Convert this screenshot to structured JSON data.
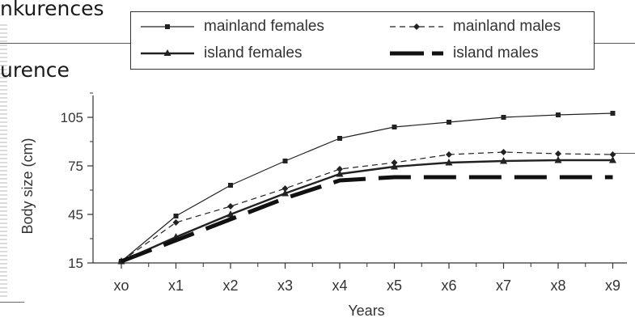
{
  "background_text": {
    "top": "nkurences",
    "middle": "urence"
  },
  "chart_data": {
    "type": "line",
    "title": "",
    "xlabel": "Years",
    "ylabel": "Body size (cm)",
    "categories": [
      "xo",
      "x1",
      "x2",
      "x3",
      "x4",
      "x5",
      "x6",
      "x7",
      "x8",
      "x9"
    ],
    "yticks": [
      15,
      45,
      75,
      105
    ],
    "ylim": [
      15,
      115
    ],
    "grid": false,
    "legend_position": "top",
    "series": [
      {
        "name": "mainland females",
        "style": "solid-thin",
        "marker": "square",
        "color": "#222222",
        "values": [
          16,
          44,
          63,
          78,
          92,
          99,
          102,
          105,
          106.5,
          107.5
        ]
      },
      {
        "name": "mainland males",
        "style": "dashed-thin",
        "marker": "diamond",
        "color": "#222222",
        "values": [
          16,
          40,
          50,
          61,
          73,
          77,
          82,
          83.5,
          82.5,
          82
        ]
      },
      {
        "name": "island females",
        "style": "solid-medium",
        "marker": "triangle",
        "color": "#222222",
        "values": [
          16,
          31,
          45,
          58,
          70,
          74.5,
          77,
          78,
          78.5,
          78.5
        ]
      },
      {
        "name": "island males",
        "style": "dashed-thick",
        "marker": "none",
        "color": "#111111",
        "values": [
          16,
          29,
          42,
          55,
          66,
          68,
          68,
          68,
          68,
          68
        ]
      }
    ]
  }
}
